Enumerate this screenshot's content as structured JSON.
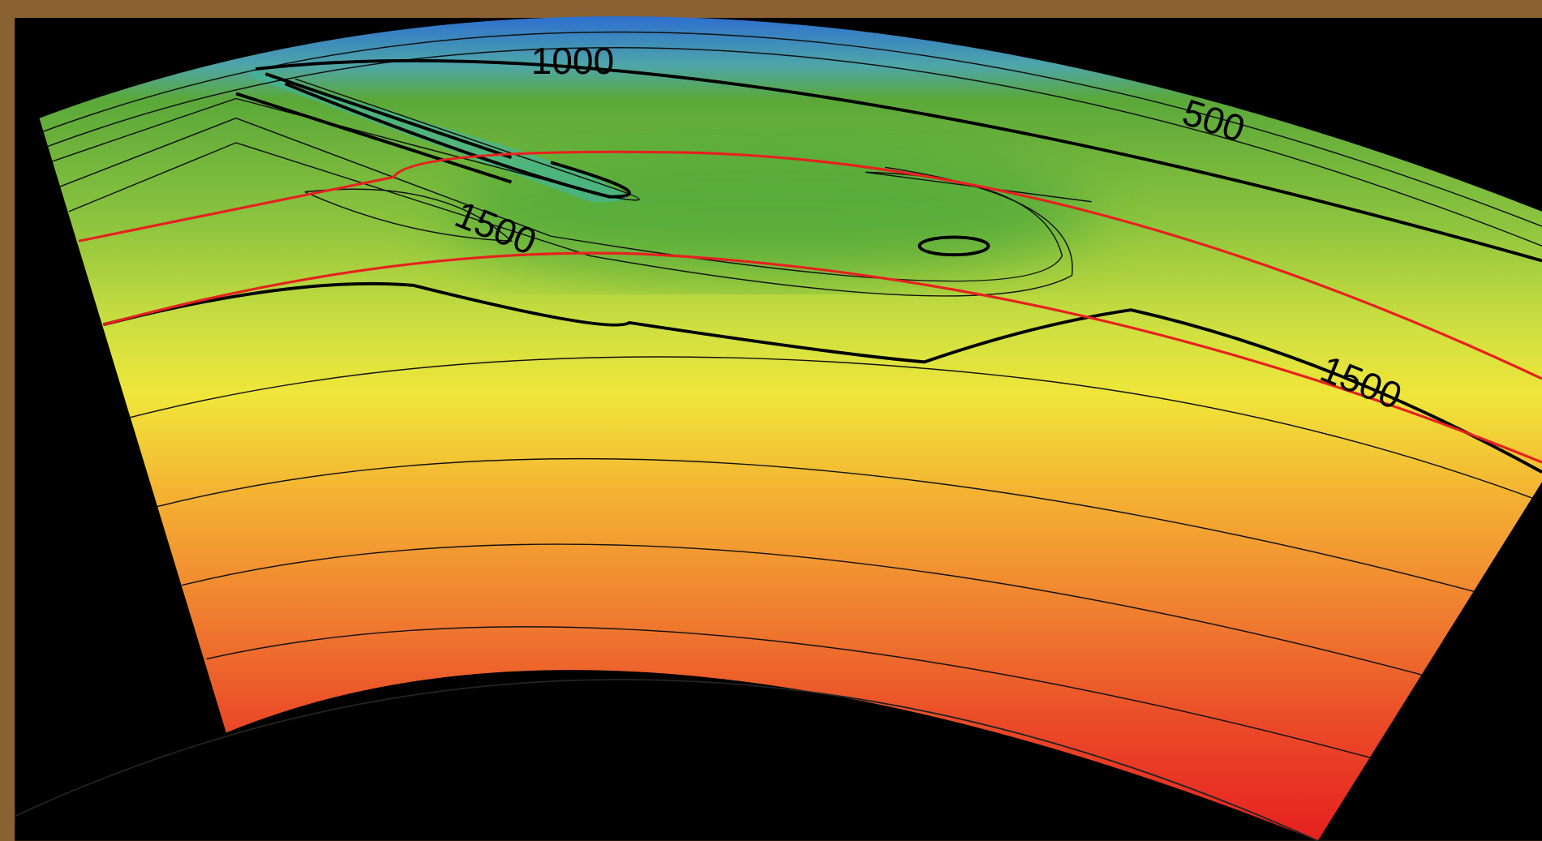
{
  "contour_labels": [
    "1000",
    "500",
    "1500",
    "1500"
  ]
}
